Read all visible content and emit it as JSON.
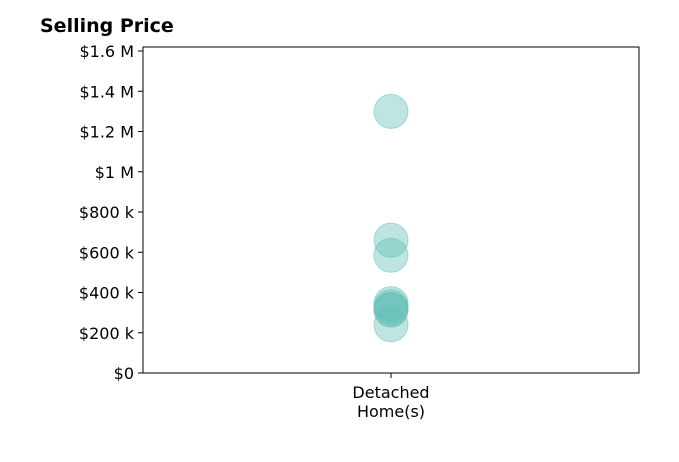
{
  "chart_data": {
    "type": "scatter",
    "title": "Selling Price",
    "xlabel": "",
    "ylabel": "",
    "categories": [
      "Detached\nHome(s)"
    ],
    "yticks": [
      0,
      200000,
      400000,
      600000,
      800000,
      1000000,
      1200000,
      1400000,
      1600000
    ],
    "ytick_labels": [
      "$0",
      "$200 k",
      "$400 k",
      "$600 k",
      "$800 k",
      "$1 M",
      "$1.2 M",
      "$1.4 M",
      "$1.6 M"
    ],
    "ylim": [
      0,
      1620000
    ],
    "grid": false,
    "legend": "none",
    "marker_color": "#5fbdb5",
    "series": [
      {
        "category": "Detached\nHome(s)",
        "values": [
          1300000,
          660000,
          585000,
          345000,
          330000,
          318000,
          312000,
          240000
        ]
      }
    ]
  }
}
